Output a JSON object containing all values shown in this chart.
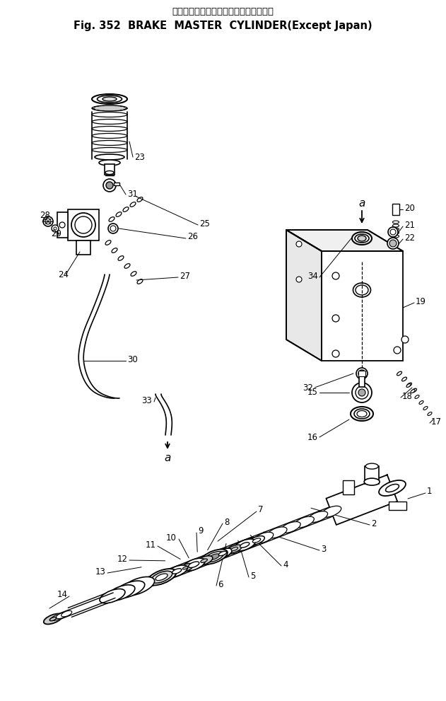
{
  "title_jp": "ブレーキマスタシリンダ（海　外　向）",
  "title_en": "Fig. 352  BRAKE  MASTER  CYLINDER(Except Japan)",
  "bg_color": "#ffffff"
}
